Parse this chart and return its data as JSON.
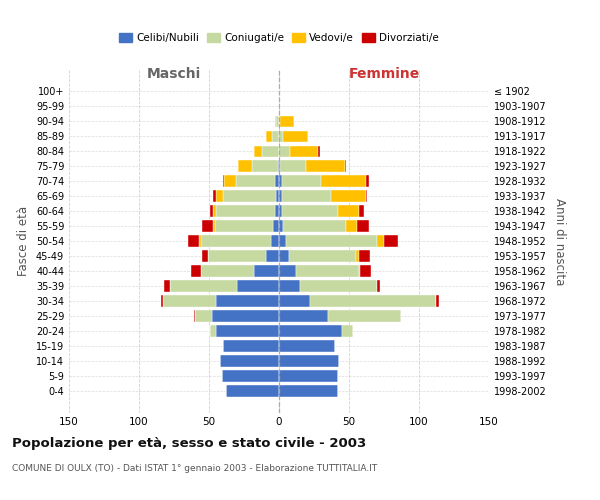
{
  "age_groups": [
    "100+",
    "95-99",
    "90-94",
    "85-89",
    "80-84",
    "75-79",
    "70-74",
    "65-69",
    "60-64",
    "55-59",
    "50-54",
    "45-49",
    "40-44",
    "35-39",
    "30-34",
    "25-29",
    "20-24",
    "15-19",
    "10-14",
    "5-9",
    "0-4"
  ],
  "birth_years": [
    "≤ 1902",
    "1903-1907",
    "1908-1912",
    "1913-1917",
    "1918-1922",
    "1923-1927",
    "1928-1932",
    "1933-1937",
    "1938-1942",
    "1943-1947",
    "1948-1952",
    "1953-1957",
    "1958-1962",
    "1963-1967",
    "1968-1972",
    "1973-1977",
    "1978-1982",
    "1983-1987",
    "1988-1992",
    "1993-1997",
    "1998-2002"
  ],
  "male": {
    "celibi": [
      0,
      0,
      0,
      0,
      0,
      1,
      3,
      2,
      3,
      4,
      6,
      9,
      18,
      30,
      45,
      48,
      45,
      40,
      42,
      41,
      38
    ],
    "coniugati": [
      0,
      0,
      2,
      5,
      12,
      18,
      28,
      38,
      42,
      42,
      50,
      42,
      38,
      48,
      38,
      12,
      4,
      0,
      0,
      0,
      0
    ],
    "vedovi": [
      0,
      0,
      1,
      4,
      6,
      10,
      8,
      5,
      2,
      1,
      1,
      0,
      0,
      0,
      0,
      0,
      0,
      0,
      0,
      0,
      0
    ],
    "divorziati": [
      0,
      0,
      0,
      0,
      0,
      0,
      1,
      2,
      2,
      8,
      8,
      4,
      7,
      4,
      1,
      1,
      0,
      0,
      0,
      0,
      0
    ]
  },
  "female": {
    "nubili": [
      0,
      0,
      0,
      0,
      0,
      1,
      2,
      2,
      2,
      3,
      5,
      7,
      12,
      15,
      22,
      35,
      45,
      40,
      43,
      42,
      42
    ],
    "coniugate": [
      0,
      0,
      1,
      3,
      8,
      18,
      28,
      35,
      40,
      45,
      65,
      48,
      45,
      55,
      90,
      52,
      8,
      0,
      0,
      0,
      0
    ],
    "vedove": [
      0,
      1,
      10,
      18,
      20,
      28,
      32,
      25,
      15,
      8,
      5,
      2,
      1,
      0,
      0,
      0,
      0,
      0,
      0,
      0,
      0
    ],
    "divorziate": [
      0,
      0,
      0,
      0,
      1,
      1,
      2,
      1,
      4,
      8,
      10,
      8,
      8,
      2,
      2,
      0,
      0,
      0,
      0,
      0,
      0
    ]
  },
  "colors": {
    "celibi": "#4472c4",
    "coniugati": "#c5d9a0",
    "vedovi": "#ffc000",
    "divorziati": "#cc0000"
  },
  "xlim": 150,
  "title": "Popolazione per età, sesso e stato civile - 2003",
  "subtitle": "COMUNE DI OULX (TO) - Dati ISTAT 1° gennaio 2003 - Elaborazione TUTTITALIA.IT",
  "legend_labels": [
    "Celibi/Nubili",
    "Coniugati/e",
    "Vedovi/e",
    "Divorziati/e"
  ],
  "xlabel_left": "Maschi",
  "xlabel_right": "Femmine",
  "ylabel_left": "Fasce di età",
  "ylabel_right": "Anni di nascita"
}
